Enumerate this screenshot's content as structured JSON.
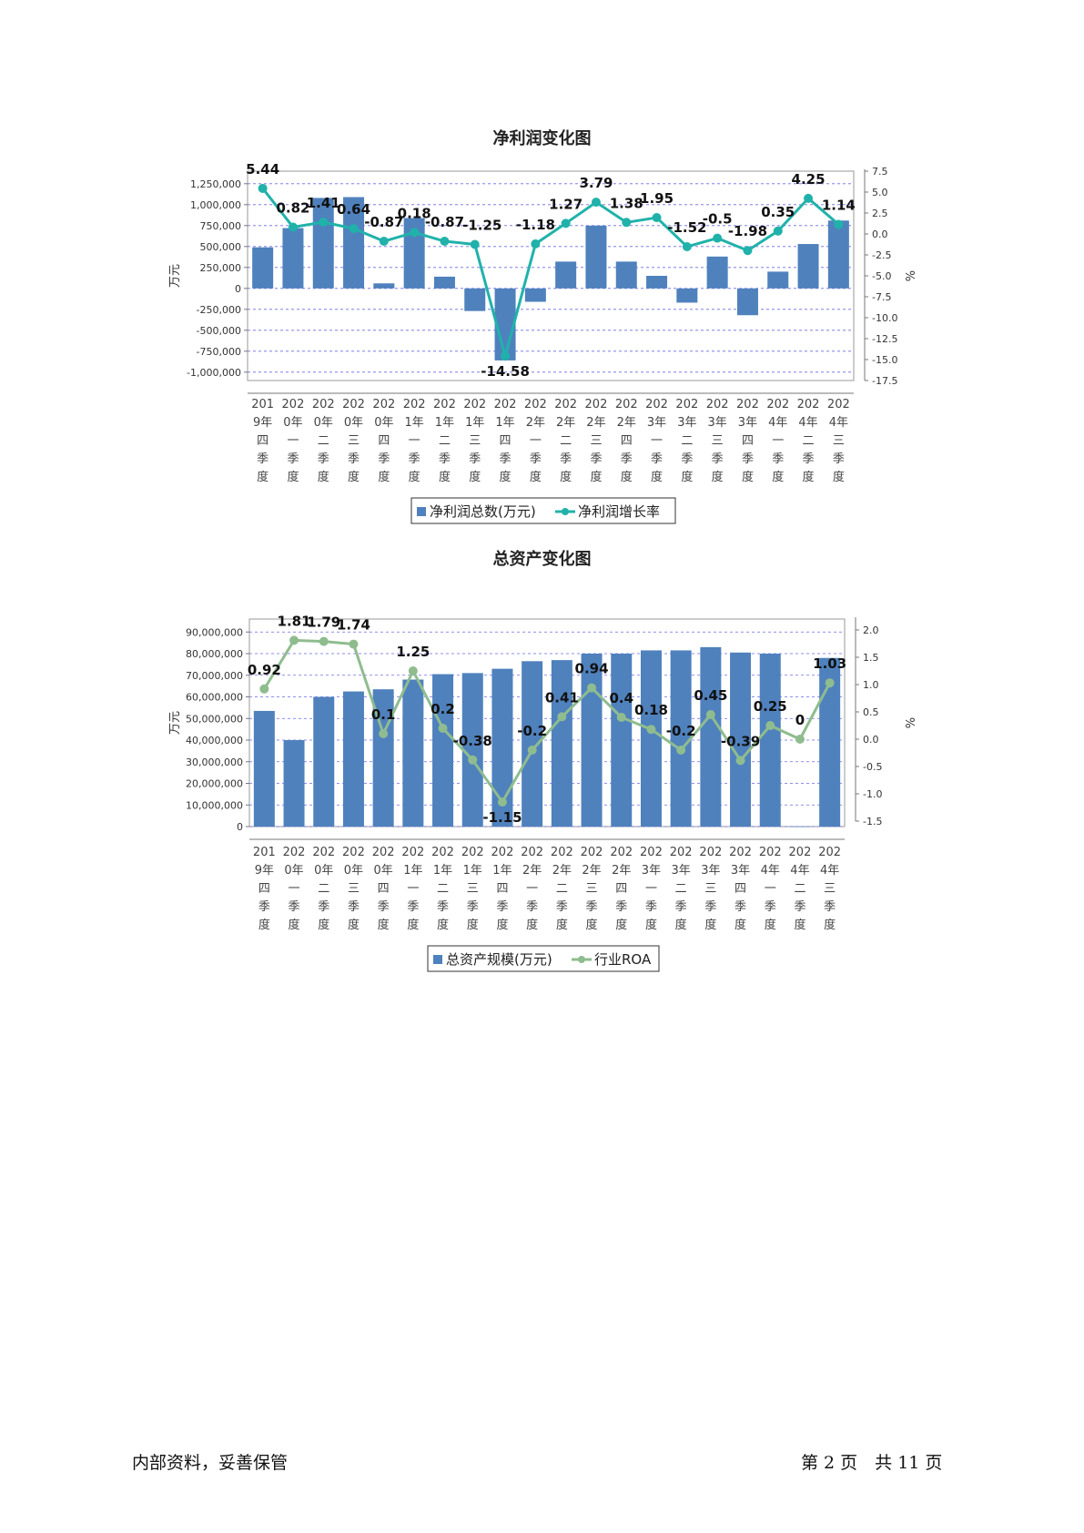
{
  "charts": {
    "net_profit": {
      "title": "净利润变化图",
      "left_axis_label": "万元",
      "right_axis_label": "%"
    },
    "total_assets": {
      "title": "总资产变化图",
      "left_axis_label": "万元",
      "right_axis_label": "%"
    }
  },
  "footer": {
    "left": "内部资料，妥善保管",
    "right": "第 2 页　共 11 页"
  },
  "chart_data": [
    {
      "type": "bar",
      "title": "净利润变化图",
      "categories": [
        "2019年四季度",
        "2020年一季度",
        "2020年二季度",
        "2020年三季度",
        "2020年四季度",
        "2021年一季度",
        "2021年二季度",
        "2021年三季度",
        "2021年四季度",
        "2022年一季度",
        "2022年二季度",
        "2022年三季度",
        "2022年四季度",
        "2023年一季度",
        "2023年二季度",
        "2023年三季度",
        "2023年四季度",
        "2024年一季度",
        "2024年二季度",
        "2024年三季度"
      ],
      "ylabel": "万元",
      "y2label": "%",
      "ylim": [
        -1100000,
        1400000
      ],
      "y2lim": [
        -17.5,
        7.5
      ],
      "yticks": [
        -1000000,
        -750000,
        -500000,
        -250000,
        0,
        250000,
        500000,
        750000,
        1000000,
        1250000
      ],
      "ytick_labels": [
        "-1,000,000",
        "-750,000",
        "-500,000",
        "-250,000",
        "0",
        "250,000",
        "500,000",
        "750,000",
        "1,000,000",
        "1,250,000"
      ],
      "y2ticks": [
        -17.5,
        -15,
        -12.5,
        -10,
        -7.5,
        -5,
        -2.5,
        0,
        2.5,
        5,
        7.5
      ],
      "y2tick_labels": [
        "-17.5",
        "-15.0",
        "-12.5",
        "-10.0",
        "-7.5",
        "-5.0",
        "-2.5",
        "0.0",
        "2.5",
        "5.0",
        "7.5"
      ],
      "grid": true,
      "legend_position": "bottom",
      "series": [
        {
          "name": "净利润总数(万元)",
          "kind": "bar",
          "axis": "left",
          "color": "#4f81bd",
          "values": [
            490000,
            720000,
            1080000,
            1090000,
            60000,
            840000,
            140000,
            -270000,
            -860000,
            -160000,
            320000,
            750000,
            320000,
            150000,
            -170000,
            380000,
            -320000,
            200000,
            530000,
            810000
          ]
        },
        {
          "name": "净利润增长率",
          "kind": "line",
          "axis": "right",
          "color": "#20b2aa",
          "values": [
            5.44,
            0.82,
            1.41,
            0.64,
            -0.87,
            0.18,
            -0.87,
            -1.25,
            -14.58,
            -1.18,
            1.27,
            3.79,
            1.38,
            1.95,
            -1.52,
            -0.5,
            -1.98,
            0.35,
            4.25,
            1.14
          ],
          "labels": [
            "5.44",
            "0.82",
            "1.41",
            "0.64",
            "-0.87",
            "0.18",
            "-0.87",
            "-1.25",
            "-14.58",
            "-1.18",
            "1.27",
            "3.79",
            "1.38",
            "1.95",
            "-1.52",
            "-0.5",
            "-1.98",
            "0.35",
            "4.25",
            "1.14"
          ]
        }
      ]
    },
    {
      "type": "bar",
      "title": "总资产变化图",
      "categories": [
        "2019年四季度",
        "2020年一季度",
        "2020年二季度",
        "2020年三季度",
        "2020年四季度",
        "2021年一季度",
        "2021年二季度",
        "2021年三季度",
        "2021年四季度",
        "2022年一季度",
        "2022年二季度",
        "2022年三季度",
        "2022年四季度",
        "2023年一季度",
        "2023年二季度",
        "2023年三季度",
        "2023年四季度",
        "2024年一季度",
        "2024年二季度",
        "2024年三季度"
      ],
      "ylabel": "万元",
      "y2label": "%",
      "ylim": [
        0,
        96000000
      ],
      "y2lim": [
        -1.6,
        2.2
      ],
      "yticks": [
        0,
        10000000,
        20000000,
        30000000,
        40000000,
        50000000,
        60000000,
        70000000,
        80000000,
        90000000
      ],
      "ytick_labels": [
        "0",
        "10,000,000",
        "20,000,000",
        "30,000,000",
        "40,000,000",
        "50,000,000",
        "60,000,000",
        "70,000,000",
        "80,000,000",
        "90,000,000"
      ],
      "y2ticks": [
        -1.5,
        -1.0,
        -0.5,
        0.0,
        0.5,
        1.0,
        1.5,
        2.0
      ],
      "y2tick_labels": [
        "-1.5",
        "-1.0",
        "-0.5",
        "0.0",
        "0.5",
        "1.0",
        "1.5",
        "2.0"
      ],
      "grid": true,
      "legend_position": "bottom",
      "series": [
        {
          "name": "总资产规模(万元)",
          "kind": "bar",
          "axis": "left",
          "color": "#4f81bd",
          "values": [
            53500000,
            40000000,
            60000000,
            62500000,
            63500000,
            68000000,
            70500000,
            71000000,
            73000000,
            76500000,
            77000000,
            80000000,
            80000000,
            81500000,
            81500000,
            83000000,
            80500000,
            80000000,
            0,
            78000000
          ]
        },
        {
          "name": "行业ROA",
          "kind": "line",
          "axis": "right",
          "color": "#8fbc8f",
          "values": [
            0.92,
            1.81,
            1.79,
            1.74,
            0.1,
            1.25,
            0.2,
            -0.38,
            -1.15,
            -0.2,
            0.41,
            0.94,
            0.4,
            0.18,
            -0.2,
            0.45,
            -0.39,
            0.25,
            0,
            1.03
          ],
          "labels": [
            "0.92",
            "1.81",
            "1.79",
            "1.74",
            "0.1",
            "1.25",
            "0.2",
            "-0.38",
            "-1.15",
            "-0.2",
            "0.41",
            "0.94",
            "0.4",
            "0.18",
            "-0.2",
            "0.45",
            "-0.39",
            "0.25",
            "0",
            "1.03"
          ]
        }
      ]
    }
  ]
}
